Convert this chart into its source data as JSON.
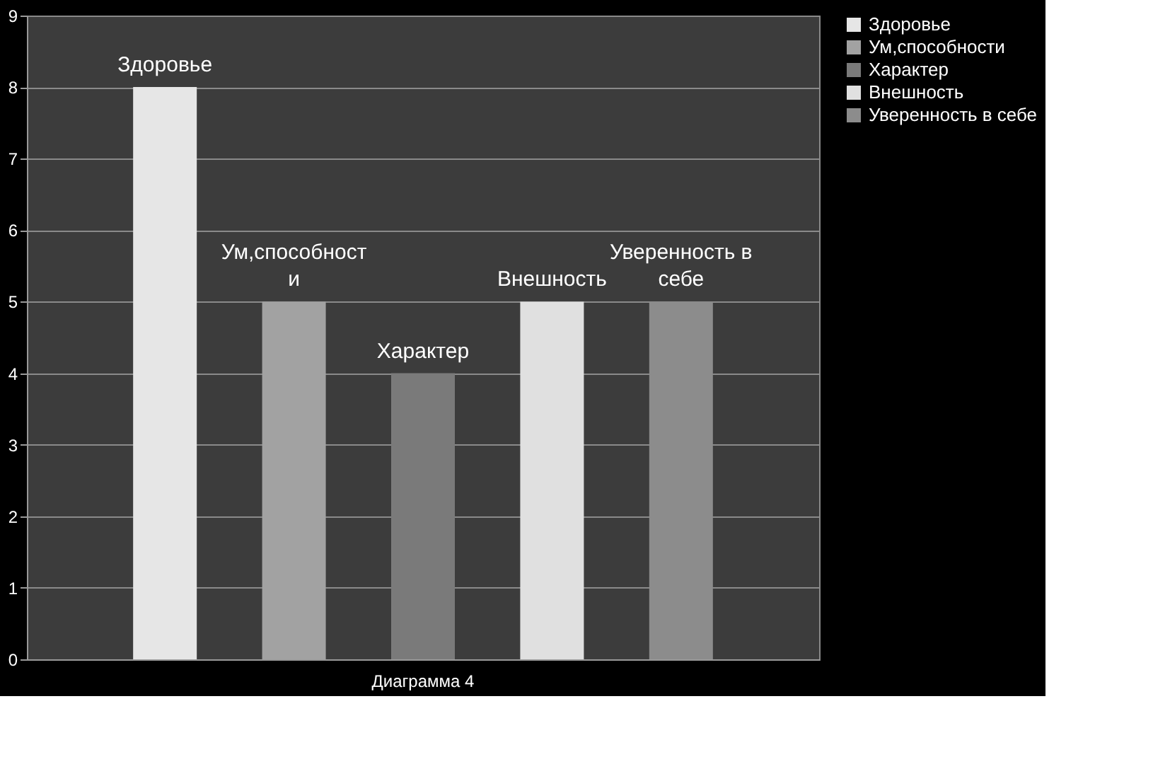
{
  "chart_data": {
    "type": "bar",
    "categories": [
      "Диаграмма 4"
    ],
    "series": [
      {
        "name": "Здоровье",
        "color": "#e6e6e6",
        "values": [
          8
        ],
        "value_labels": [
          "Здоровье"
        ]
      },
      {
        "name": "Ум,способности",
        "color": "#a2a2a2",
        "values": [
          5
        ],
        "value_labels": [
          "Ум,способности"
        ]
      },
      {
        "name": "Характер",
        "color": "#7a7a7a",
        "values": [
          4
        ],
        "value_labels": [
          "Характер"
        ]
      },
      {
        "name": "Внешность",
        "color": "#e0e0e0",
        "values": [
          5
        ],
        "value_labels": [
          "Внешность"
        ]
      },
      {
        "name": "Уверенность в себе",
        "color": "#8c8c8c",
        "values": [
          5
        ],
        "value_labels": [
          "Уверенность в себе"
        ]
      }
    ],
    "ylim": [
      0,
      9
    ],
    "yticks": [
      0,
      1,
      2,
      3,
      4,
      5,
      6,
      7,
      8,
      9
    ],
    "grid": "y",
    "legend": "right"
  }
}
